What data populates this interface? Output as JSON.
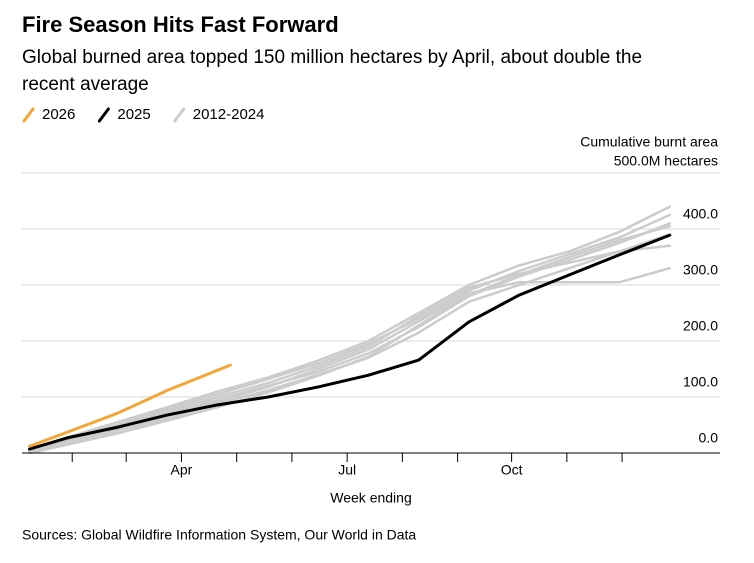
{
  "chart_data": {
    "type": "line",
    "title": "Fire Season Hits Fast Forward",
    "subtitle": [
      "Global burned area topped 150 million hectares by April, about double the",
      "recent average"
    ],
    "y_label": "Cumulative burnt area",
    "x_label": "Week ending",
    "source": "Sources: Global Wildfire Information System, Our World in Data",
    "x": [
      1,
      4,
      8,
      12,
      16,
      20,
      24,
      28,
      32,
      36,
      40,
      44,
      48,
      52
    ],
    "xlim": [
      0.4,
      56
    ],
    "xticks": [
      {
        "value": 13.1,
        "label": "Apr"
      },
      {
        "value": 26.3,
        "label": "Jul"
      },
      {
        "value": 39.4,
        "label": "Oct"
      }
    ],
    "xminor_ticks": [
      4.4,
      8.7,
      17.5,
      21.9,
      30.7,
      35.1,
      43.8,
      48.2
    ],
    "ylim": [
      0,
      500
    ],
    "yticks": [
      {
        "value": 0,
        "label": "0.0"
      },
      {
        "value": 100,
        "label": "100.0"
      },
      {
        "value": 200,
        "label": "200.0"
      },
      {
        "value": 300,
        "label": "300.0"
      },
      {
        "value": 400,
        "label": "400.0"
      },
      {
        "value": 500,
        "label": "500.0M hectares"
      }
    ],
    "grid": true,
    "series": [
      {
        "name": "2026",
        "color": "#f5a535",
        "x": [
          1,
          4,
          8,
          12,
          16,
          17
        ],
        "values": [
          12,
          37,
          71,
          112,
          148,
          157
        ]
      },
      {
        "name": "2025",
        "color": "#000000",
        "values": [
          7,
          27,
          46,
          68,
          86,
          100,
          118,
          139,
          166,
          234,
          282,
          318,
          354,
          389
        ]
      },
      {
        "name": "2012-2024",
        "color": "#cccccc",
        "lines": [
          [
            2,
            22,
            45,
            70,
            95,
            120,
            145,
            178,
            225,
            280,
            315,
            345,
            375,
            410
          ],
          [
            4,
            25,
            50,
            78,
            105,
            132,
            160,
            195,
            240,
            290,
            325,
            355,
            385,
            425
          ],
          [
            6,
            28,
            55,
            82,
            110,
            135,
            165,
            200,
            250,
            300,
            335,
            360,
            395,
            440
          ],
          [
            1,
            18,
            40,
            62,
            88,
            112,
            140,
            170,
            215,
            270,
            300,
            330,
            360,
            390
          ],
          [
            3,
            20,
            42,
            66,
            92,
            118,
            150,
            185,
            235,
            285,
            305,
            305,
            305,
            330
          ],
          [
            5,
            24,
            48,
            74,
            100,
            125,
            155,
            190,
            245,
            295,
            320,
            340,
            360,
            370
          ],
          [
            0,
            15,
            35,
            58,
            82,
            108,
            138,
            172,
            228,
            282,
            318,
            350,
            380,
            405
          ]
        ]
      }
    ]
  }
}
